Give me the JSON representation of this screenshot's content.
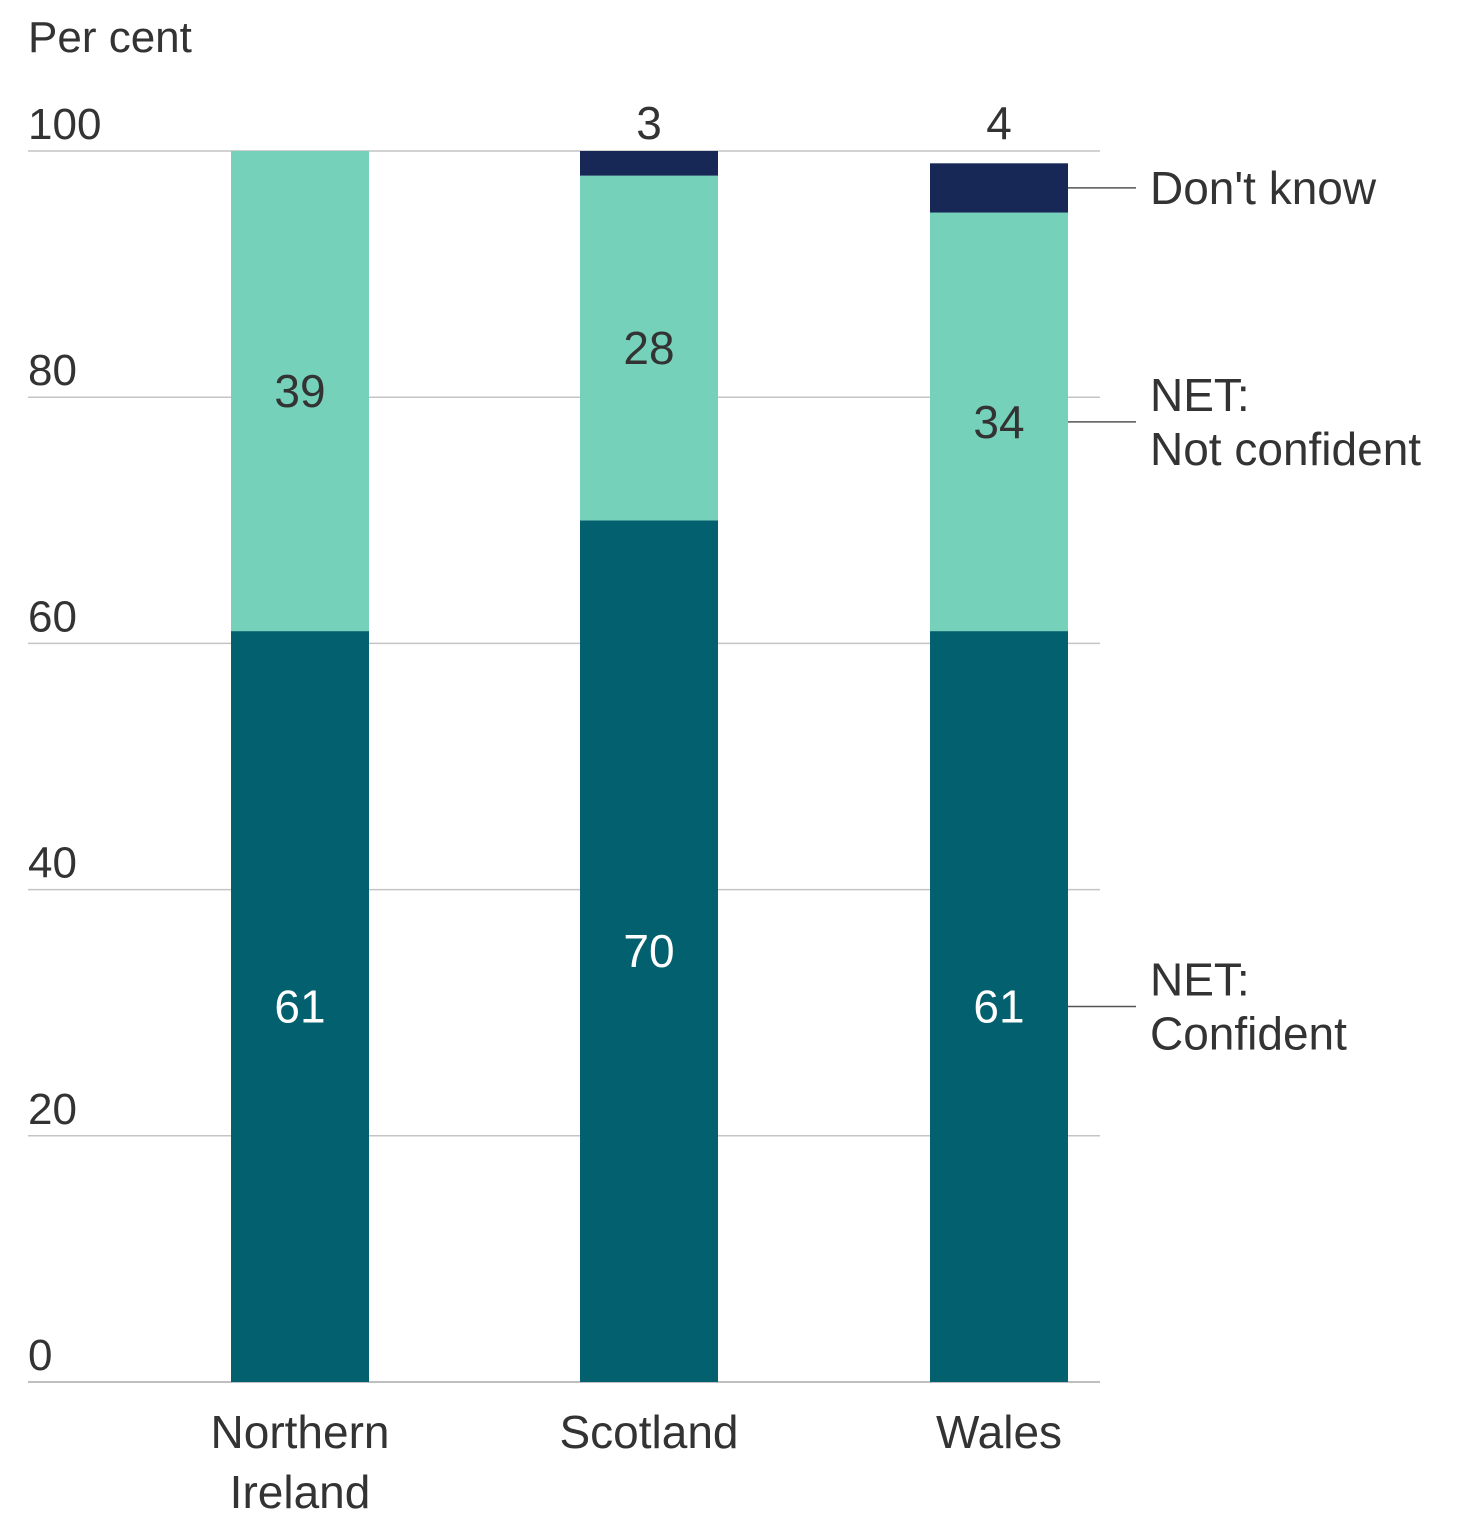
{
  "chart_data": {
    "type": "bar",
    "stacked": true,
    "ylabel": "Per cent",
    "title": "",
    "xlabel": "",
    "ylim": [
      0,
      100
    ],
    "yticks": [
      0,
      20,
      40,
      60,
      80,
      100
    ],
    "grid": true,
    "categories": [
      "Northern\nIreland",
      "Scotland",
      "Wales"
    ],
    "series": [
      {
        "name": "NET:\nConfident",
        "values": [
          61,
          70,
          61
        ],
        "color": "#03606f",
        "label_color": "#ffffff"
      },
      {
        "name": "NET:\nNot confident",
        "values": [
          39,
          28,
          34
        ],
        "color": "#75d1ba",
        "label_color": "#333333"
      },
      {
        "name": "Don't know",
        "values": [
          0,
          3,
          4
        ],
        "color": "#172856",
        "label_color": "#333333",
        "label_position": "above"
      }
    ],
    "legend_placement": "right"
  }
}
